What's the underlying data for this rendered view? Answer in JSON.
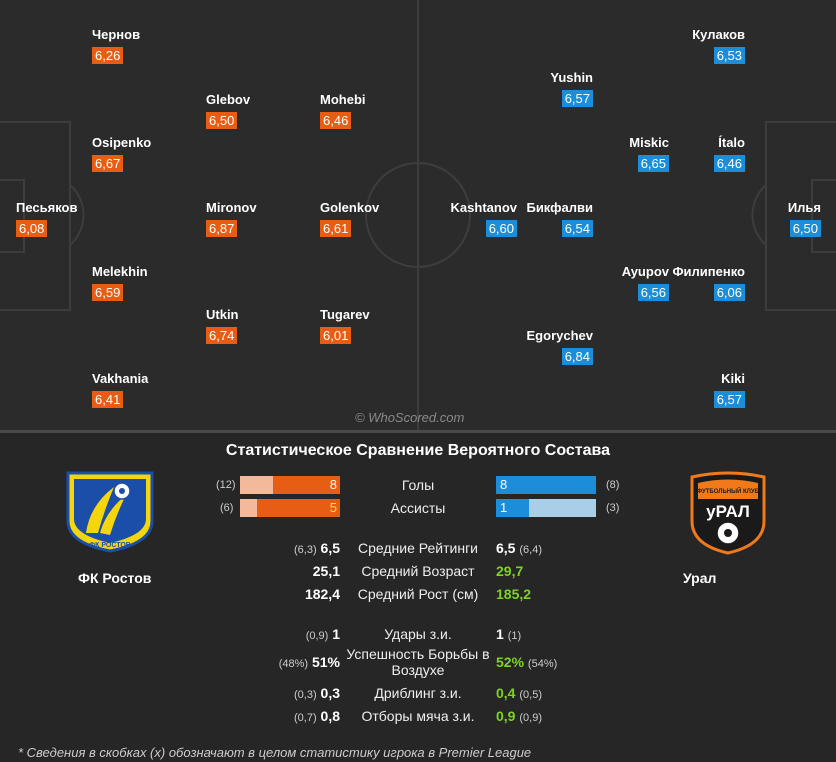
{
  "watermark": "© WhoScored.com",
  "home_players": [
    {
      "name": "Чернов",
      "rating": "6,26"
    },
    {
      "name": "Glebov",
      "rating": "6,50"
    },
    {
      "name": "Mohebi",
      "rating": "6,46"
    },
    {
      "name": "Osipenko",
      "rating": "6,67"
    },
    {
      "name": "Песьяков",
      "rating": "6,08"
    },
    {
      "name": "Mironov",
      "rating": "6,87"
    },
    {
      "name": "Golenkov",
      "rating": "6,61"
    },
    {
      "name": "Melekhin",
      "rating": "6,59"
    },
    {
      "name": "Utkin",
      "rating": "6,74"
    },
    {
      "name": "Tugarev",
      "rating": "6,01"
    },
    {
      "name": "Vakhania",
      "rating": "6,41"
    }
  ],
  "away_players": [
    {
      "name": "Кулаков",
      "rating": "6,53"
    },
    {
      "name": "Yushin",
      "rating": "6,57"
    },
    {
      "name": "Miskic",
      "rating": "6,65"
    },
    {
      "name": "Ítalo",
      "rating": "6,46"
    },
    {
      "name": "Kashtanov",
      "rating": "6,60"
    },
    {
      "name": "Бикфалви",
      "rating": "6,54"
    },
    {
      "name": "Илья",
      "rating": "6,50"
    },
    {
      "name": "Ayupov",
      "rating": "6,56"
    },
    {
      "name": "Филипенко",
      "rating": "6,06"
    },
    {
      "name": "Egorychev",
      "rating": "6,84"
    },
    {
      "name": "Kiki",
      "rating": "6,57"
    }
  ],
  "stats": {
    "title": "Статистическое Сравнение Вероятного Состава",
    "home_team": "ФК Ростов",
    "away_team": "Урал",
    "home_logo_text": "ФК РОСТОВ",
    "away_logo_text": "уРАЛ",
    "away_logo_small": "ФУТБОЛЬНЫЙ КЛУБ",
    "colors": {
      "home": "#e85d14",
      "home_light": "#f4b99a",
      "away": "#1c8ed9",
      "away_light": "#a9cfe8"
    },
    "bars": [
      {
        "label": "Голы",
        "home_total": "(12)",
        "home_value": "8",
        "home_share": 0.67,
        "away_value": "8",
        "away_total": "(8)",
        "away_share": 1.0
      },
      {
        "label": "Ассисты",
        "home_total": "(6)",
        "home_value": "5",
        "home_share": 0.83,
        "away_value": "1",
        "away_total": "(3)",
        "away_share": 0.33
      }
    ],
    "rows": [
      {
        "label": "Средние Рейтинги",
        "home_paren": "(6,3)",
        "home": "6,5",
        "away": "6,5",
        "away_paren": "(6,4)"
      },
      {
        "label": "Средний Возраст",
        "home": "25,1",
        "away": "29,7"
      },
      {
        "label": "Средний Рост (см)",
        "home": "182,4",
        "away": "185,2"
      },
      {
        "label": "Удары з.и.",
        "home_paren": "(0,9)",
        "home": "1",
        "away": "1",
        "away_paren": "(1)"
      },
      {
        "label": "Успешность Борьбы в Воздухе",
        "home_paren": "(48%)",
        "home": "51%",
        "away": "52%",
        "away_paren": "(54%)"
      },
      {
        "label": "Дриблинг з.и.",
        "home_paren": "(0,3)",
        "home": "0,3",
        "away": "0,4",
        "away_paren": "(0,5)"
      },
      {
        "label": "Отборы мяча з.и.",
        "home_paren": "(0,7)",
        "home": "0,8",
        "away": "0,9",
        "away_paren": "(0,9)"
      }
    ],
    "footnote": "* Сведения в скобках (x) обозначают в целом статистику игрока в Premier League"
  }
}
